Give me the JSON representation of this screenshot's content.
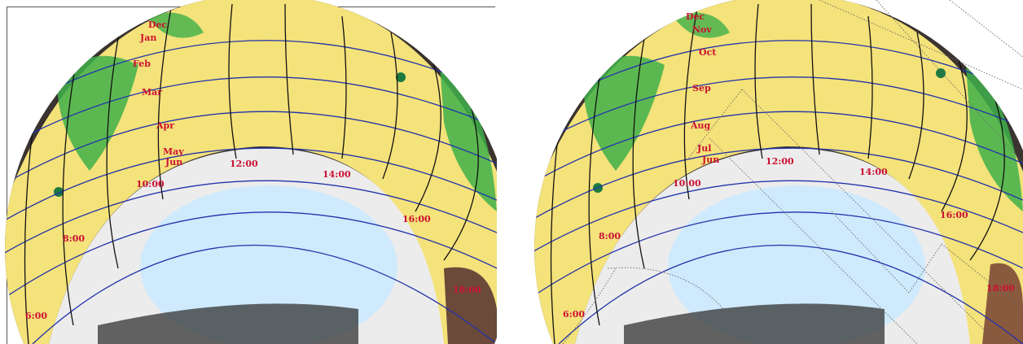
{
  "panels": [
    {
      "name": "left",
      "month_labels": [
        "Dec",
        "Jan",
        "Feb",
        "Mar",
        "Apr",
        "May",
        "Jun"
      ],
      "hour_labels": [
        "6:00",
        "8:00",
        "10:00",
        "12:00",
        "14:00",
        "16:00",
        "18:00"
      ]
    },
    {
      "name": "right",
      "month_labels": [
        "Dec",
        "Nov",
        "Oct",
        "Sep",
        "Aug",
        "Jul",
        "Jun"
      ],
      "hour_labels": [
        "6:00",
        "8:00",
        "10:00",
        "12:00",
        "14:00",
        "16:00",
        "18:00"
      ]
    }
  ],
  "colors": {
    "sunpath_fill": "#f4e27a",
    "sky": "#cfeafc",
    "hour_lines": "#111111",
    "month_lines": "#2233aa",
    "labels": "#cc1133",
    "foliage": "#3fb04a",
    "obstruction_gray": "#ececec"
  }
}
